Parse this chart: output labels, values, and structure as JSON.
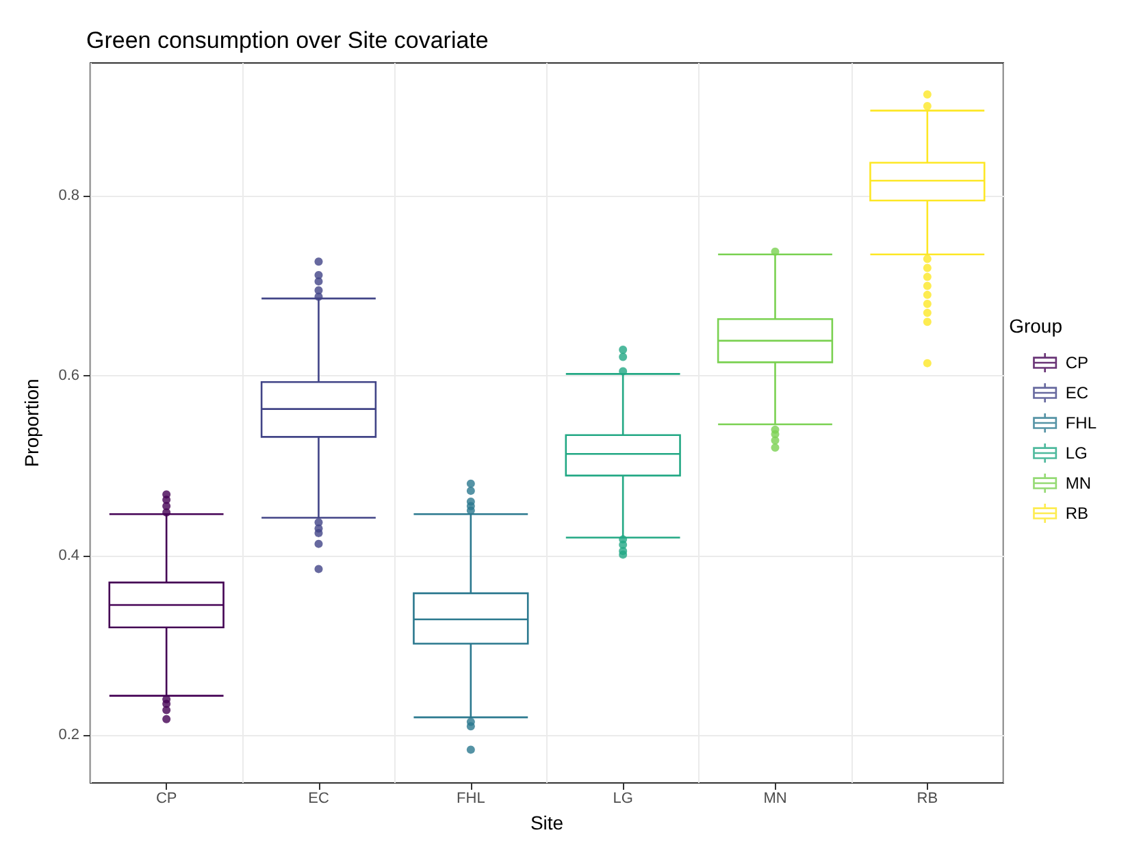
{
  "chart_data": {
    "type": "box",
    "title": "Green consumption over Site covariate",
    "xlabel": "Site",
    "ylabel": "Proportion",
    "legend_title": "Group",
    "legend": "right",
    "grid": true,
    "categories": [
      "CP",
      "EC",
      "FHL",
      "LG",
      "MN",
      "RB"
    ],
    "ylim": [
      0.147,
      0.948
    ],
    "yticks": [
      0.2,
      0.4,
      0.6,
      0.8
    ],
    "series": [
      {
        "name": "CP",
        "color": "#440154",
        "boxes": [
          {
            "low": 0.244,
            "q1": 0.32,
            "median": 0.345,
            "q3": 0.37,
            "high": 0.446,
            "outliers": [
              0.448,
              0.455,
              0.462,
              0.468,
              0.24,
              0.235,
              0.228,
              0.218
            ]
          },
          null,
          null,
          null,
          null,
          null
        ]
      },
      {
        "name": "EC",
        "color": "#414487",
        "boxes": [
          null,
          {
            "low": 0.442,
            "q1": 0.532,
            "median": 0.563,
            "q3": 0.593,
            "high": 0.686,
            "outliers": [
              0.688,
              0.695,
              0.705,
              0.712,
              0.727,
              0.437,
              0.43,
              0.425,
              0.413,
              0.385
            ]
          },
          null,
          null,
          null,
          null
        ]
      },
      {
        "name": "FHL",
        "color": "#2a788e",
        "boxes": [
          null,
          null,
          {
            "low": 0.22,
            "q1": 0.302,
            "median": 0.329,
            "q3": 0.358,
            "high": 0.446,
            "outliers": [
              0.45,
              0.455,
              0.46,
              0.472,
              0.48,
              0.215,
              0.21,
              0.184
            ]
          },
          null,
          null,
          null
        ]
      },
      {
        "name": "LG",
        "color": "#22a884",
        "boxes": [
          null,
          null,
          null,
          {
            "low": 0.42,
            "q1": 0.489,
            "median": 0.513,
            "q3": 0.534,
            "high": 0.602,
            "outliers": [
              0.605,
              0.621,
              0.629,
              0.418,
              0.412,
              0.405,
              0.401
            ]
          },
          null,
          null
        ]
      },
      {
        "name": "MN",
        "color": "#7ad151",
        "boxes": [
          null,
          null,
          null,
          null,
          {
            "low": 0.546,
            "q1": 0.615,
            "median": 0.639,
            "q3": 0.663,
            "high": 0.735,
            "outliers": [
              0.738,
              0.54,
              0.535,
              0.528,
              0.52
            ]
          },
          null
        ]
      },
      {
        "name": "RB",
        "color": "#fde725",
        "boxes": [
          null,
          null,
          null,
          null,
          null,
          {
            "low": 0.735,
            "q1": 0.795,
            "median": 0.817,
            "q3": 0.837,
            "high": 0.895,
            "outliers": [
              0.9,
              0.913,
              0.73,
              0.72,
              0.71,
              0.7,
              0.69,
              0.68,
              0.67,
              0.66,
              0.614
            ]
          }
        ]
      }
    ]
  }
}
